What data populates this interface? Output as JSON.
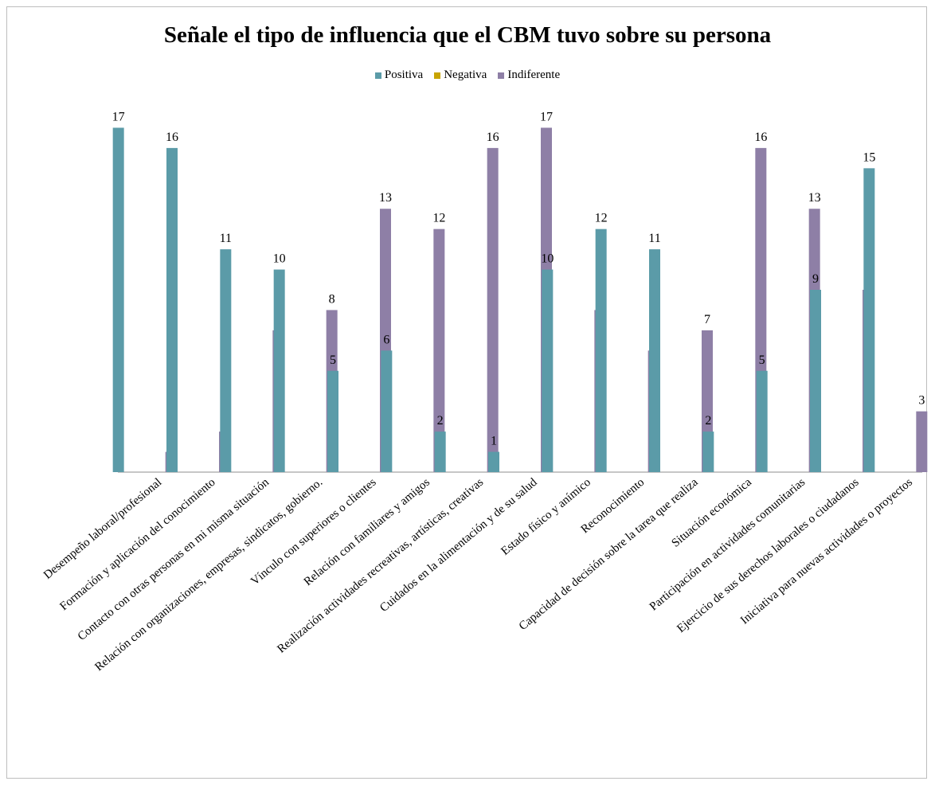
{
  "chart_data": {
    "type": "bar",
    "title": "Señale el tipo de influencia que el CBM tuvo sobre su persona",
    "xlabel": "",
    "ylabel": "",
    "ylim": [
      0,
      18
    ],
    "grid": false,
    "legend_position": "top",
    "categories": [
      "Desempeño laboral/profesional",
      "Formación y aplicación del conocimiento",
      "Contacto con otras personas en mi misma situación",
      "Relación con organizaciones, empresas, sindicatos, gobierno.",
      "Vínculo con superiores o clientes",
      "Relación con familiares y amigos",
      "Realización actividades recreativas, artísticas, creativas",
      "Cuidados en la alimentación y de su salud",
      "Estado físico y anímico",
      "Reconocimiento",
      "Capacidad de decisión sobre la tarea que realiza",
      "Situación económica",
      "Participación en actividades comunitarias",
      "Ejercicio de sus derechos laborales o ciudadanos",
      "Iniciativa para nuevas actividades o proyectos"
    ],
    "series": [
      {
        "name": "Positiva",
        "color": "#5b9ba8",
        "values": [
          17,
          16,
          11,
          10,
          5,
          6,
          2,
          1,
          10,
          12,
          11,
          2,
          5,
          9,
          15
        ]
      },
      {
        "name": "Negativa",
        "color": "#c8a400",
        "values": [
          0,
          0,
          0,
          0,
          0,
          0,
          0,
          0,
          0,
          0,
          0,
          0,
          0,
          0,
          0
        ]
      },
      {
        "name": "Indiferente",
        "color": "#8e7fa6",
        "values": [
          1,
          2,
          7,
          8,
          13,
          12,
          16,
          17,
          8,
          6,
          7,
          16,
          13,
          9,
          3
        ]
      }
    ],
    "data_labels": [
      [
        "17",
        "16",
        "11",
        "10",
        "5",
        "6",
        "2",
        "1",
        "10",
        "12",
        "11",
        "2",
        "5",
        "9",
        "15"
      ],
      [
        "",
        "",
        "",
        "",
        "",
        "",
        "",
        "",
        "",
        "",
        "",
        "",
        "",
        "",
        ""
      ],
      [
        "1",
        "2",
        "7",
        "8",
        "13",
        "12",
        "16",
        "17",
        "8",
        "6",
        "7",
        "16",
        "13",
        "9",
        "3"
      ]
    ]
  }
}
